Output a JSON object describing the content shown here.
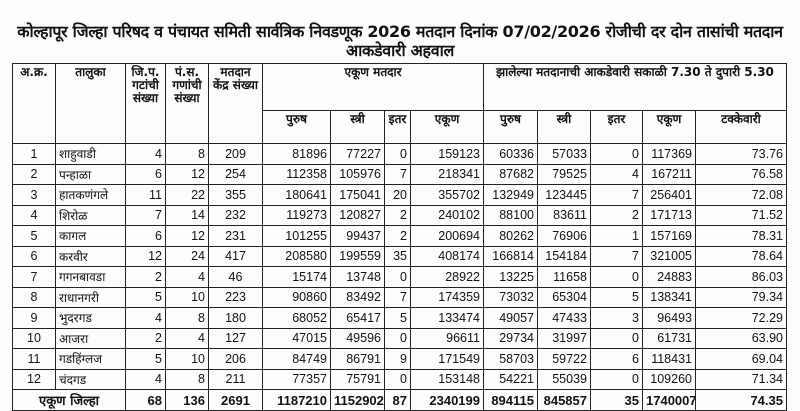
{
  "title": "कोल्हापूर जिल्हा परिषद व पंचायत समिती सार्वत्रिक निवडणूक 2026 मतदान दिनांक 07/02/2026 रोजीची दर दोन तासांची मतदान आकडेवारी अहवाल",
  "headers": {
    "sr": "अ.क्र.",
    "taluka": "तालुका",
    "zp": "जि.प. गटांची संख्या",
    "ps": "पं.स. गणांची संख्या",
    "booths": "मतदान केंद्र संख्या",
    "total_voters": "एकूण मतदार",
    "polled": "झालेल्या मतदानाची आकडेवारी सकाळी 7.30 ते दुपारी 5.30",
    "male": "पुरुष",
    "female": "स्त्री",
    "other": "इतर",
    "total": "एकूण",
    "percent": "टक्केवारी"
  },
  "rows": [
    [
      "1",
      "शाहुवाडी",
      "4",
      "8",
      "209",
      "81896",
      "77227",
      "0",
      "159123",
      "60336",
      "57033",
      "0",
      "117369",
      "73.76"
    ],
    [
      "2",
      "पन्हाळा",
      "6",
      "12",
      "254",
      "112358",
      "105976",
      "7",
      "218341",
      "87682",
      "79525",
      "4",
      "167211",
      "76.58"
    ],
    [
      "3",
      "हातकणंगले",
      "11",
      "22",
      "355",
      "180641",
      "175041",
      "20",
      "355702",
      "132949",
      "123445",
      "7",
      "256401",
      "72.08"
    ],
    [
      "4",
      "शिरोळ",
      "7",
      "14",
      "232",
      "119273",
      "120827",
      "2",
      "240102",
      "88100",
      "83611",
      "2",
      "171713",
      "71.52"
    ],
    [
      "5",
      "कागल",
      "6",
      "12",
      "231",
      "101255",
      "99437",
      "2",
      "200694",
      "80262",
      "76906",
      "1",
      "157169",
      "78.31"
    ],
    [
      "6",
      "करवीर",
      "12",
      "24",
      "417",
      "208580",
      "199559",
      "35",
      "408174",
      "166814",
      "154184",
      "7",
      "321005",
      "78.64"
    ],
    [
      "7",
      "गगनबावडा",
      "2",
      "4",
      "46",
      "15174",
      "13748",
      "0",
      "28922",
      "13225",
      "11658",
      "0",
      "24883",
      "86.03"
    ],
    [
      "8",
      "राधानगरी",
      "5",
      "10",
      "223",
      "90860",
      "83492",
      "7",
      "174359",
      "73032",
      "65304",
      "5",
      "138341",
      "79.34"
    ],
    [
      "9",
      "भुदरगड",
      "4",
      "8",
      "180",
      "68052",
      "65417",
      "5",
      "133474",
      "49057",
      "47433",
      "3",
      "96493",
      "72.29"
    ],
    [
      "10",
      "आजरा",
      "2",
      "4",
      "127",
      "47015",
      "49596",
      "0",
      "96611",
      "29734",
      "31997",
      "0",
      "61731",
      "63.90"
    ],
    [
      "11",
      "गडहिंग्लज",
      "5",
      "10",
      "206",
      "84749",
      "86791",
      "9",
      "171549",
      "58703",
      "59722",
      "6",
      "118431",
      "69.04"
    ],
    [
      "12",
      "चंदगड",
      "4",
      "8",
      "211",
      "77357",
      "75791",
      "0",
      "153148",
      "54221",
      "55039",
      "0",
      "109260",
      "71.34"
    ]
  ],
  "total": {
    "label": "एकूण जिल्हा",
    "values": [
      "68",
      "136",
      "2691",
      "1187210",
      "1152902",
      "87",
      "2340199",
      "894115",
      "845857",
      "35",
      "1740007",
      "74.35"
    ]
  }
}
